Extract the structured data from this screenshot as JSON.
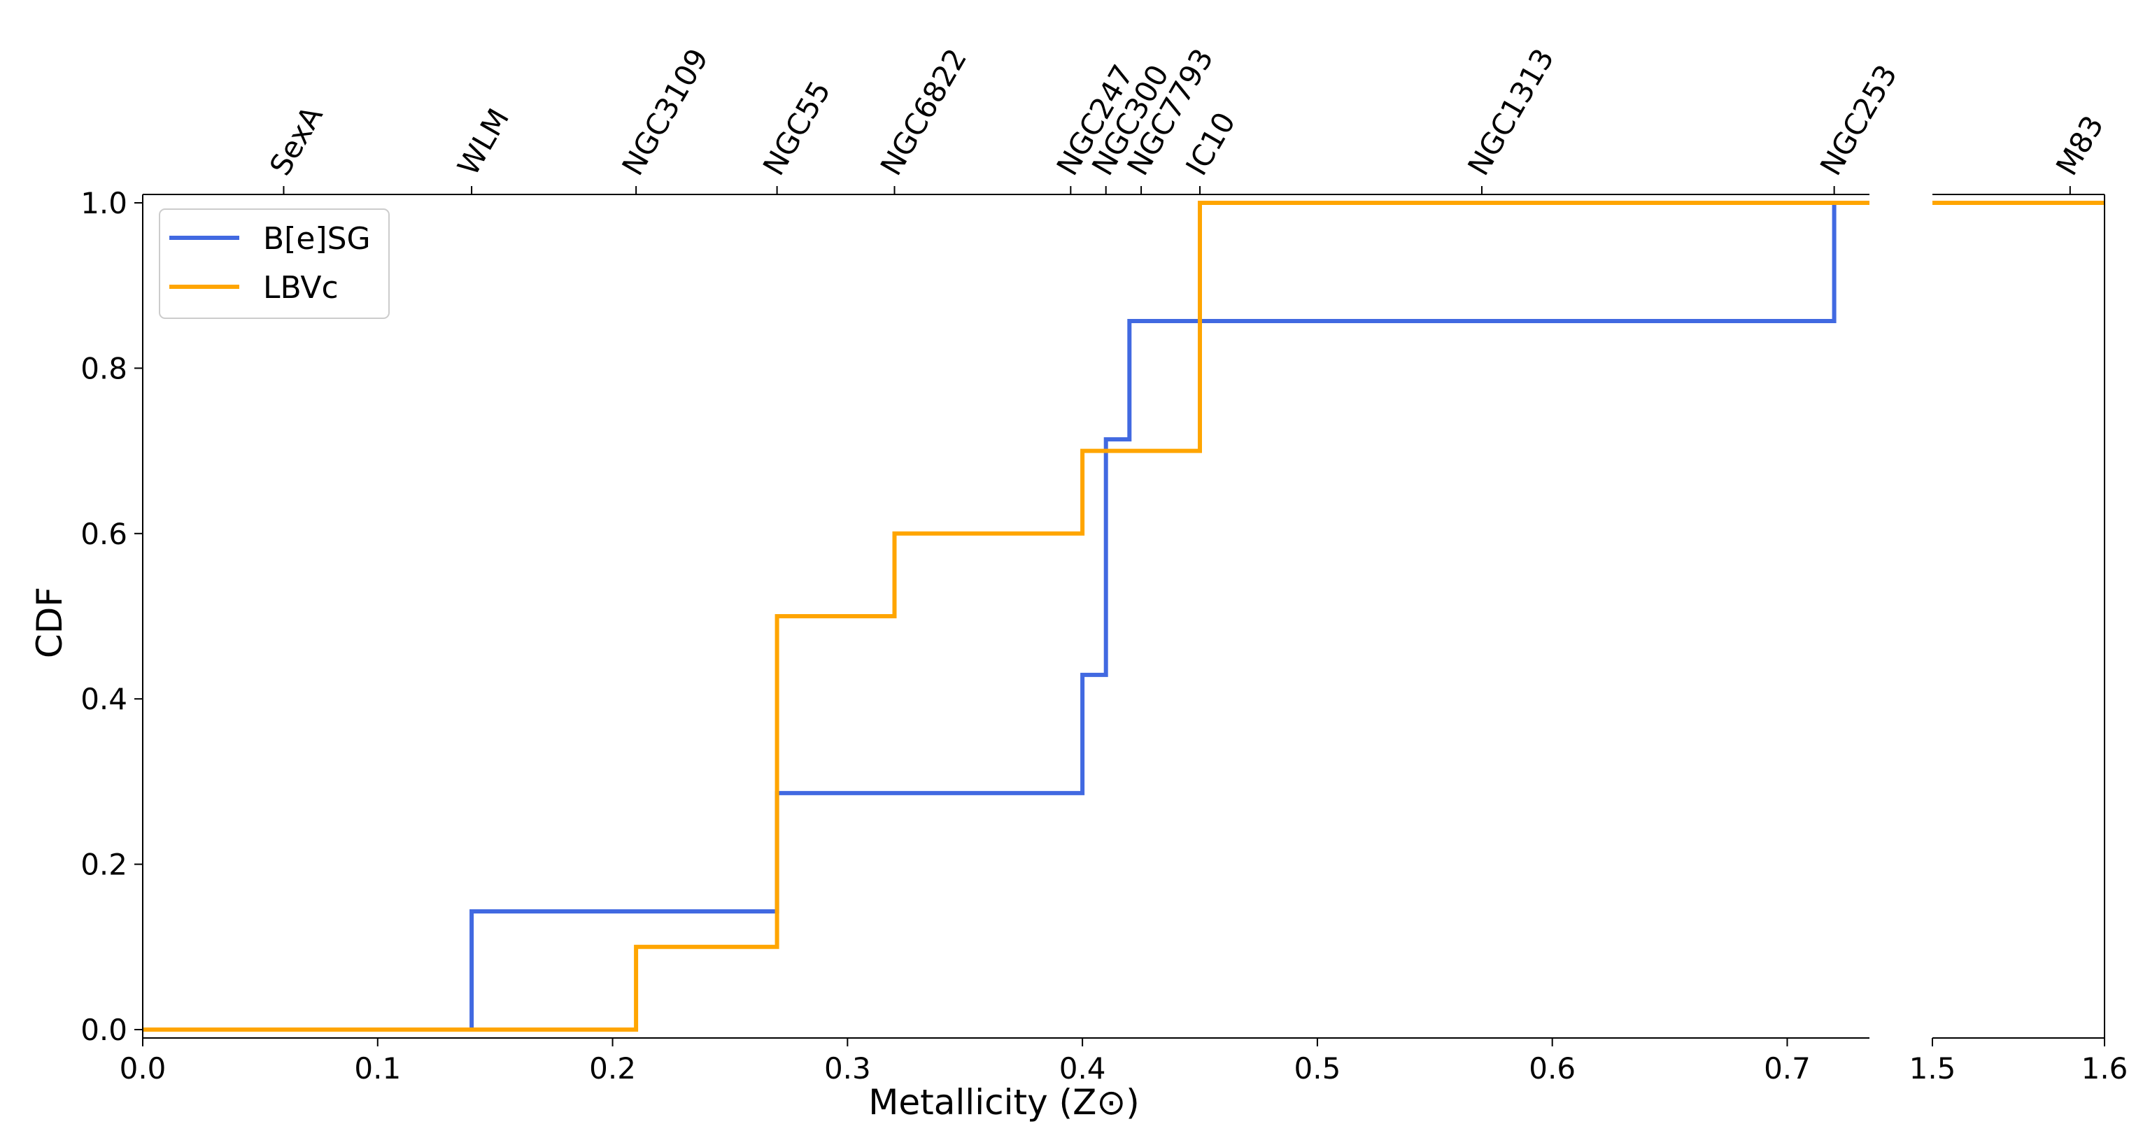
{
  "chart_data": {
    "type": "line",
    "step": true,
    "title": "",
    "xlabel": "Metallicity (Z⊙)",
    "ylabel": "CDF",
    "ylim": [
      0.0,
      1.0
    ],
    "yticks": [
      {
        "value": 0.0,
        "label": "0.0"
      },
      {
        "value": 0.2,
        "label": "0.2"
      },
      {
        "value": 0.4,
        "label": "0.4"
      },
      {
        "value": 0.6,
        "label": "0.6"
      },
      {
        "value": 0.8,
        "label": "0.8"
      },
      {
        "value": 1.0,
        "label": "1.0"
      }
    ],
    "broken_x_axis": {
      "left_xlim": [
        0.0,
        0.735
      ],
      "right_xlim": [
        1.5,
        1.6
      ],
      "left_ticks": [
        {
          "value": 0.0,
          "label": "0.0"
        },
        {
          "value": 0.1,
          "label": "0.1"
        },
        {
          "value": 0.2,
          "label": "0.2"
        },
        {
          "value": 0.3,
          "label": "0.3"
        },
        {
          "value": 0.4,
          "label": "0.4"
        },
        {
          "value": 0.5,
          "label": "0.5"
        },
        {
          "value": 0.6,
          "label": "0.6"
        },
        {
          "value": 0.7,
          "label": "0.7"
        }
      ],
      "right_ticks": [
        {
          "value": 1.5,
          "label": "1.5"
        },
        {
          "value": 1.6,
          "label": "1.6"
        }
      ]
    },
    "top_axis_galaxies": [
      {
        "name": "SexA",
        "z": 0.06
      },
      {
        "name": "WLM",
        "z": 0.14
      },
      {
        "name": "NGC3109",
        "z": 0.21
      },
      {
        "name": "NGC55",
        "z": 0.27
      },
      {
        "name": "NGC6822",
        "z": 0.32
      },
      {
        "name": "NGC247",
        "z": 0.395
      },
      {
        "name": "NGC300",
        "z": 0.41
      },
      {
        "name": "NGC7793",
        "z": 0.425
      },
      {
        "name": "IC10",
        "z": 0.45
      },
      {
        "name": "NGC1313",
        "z": 0.57
      },
      {
        "name": "NGC253",
        "z": 0.72
      },
      {
        "name": "M83",
        "z": 1.58
      }
    ],
    "series": [
      {
        "name": "B[e]SG",
        "color": "#4169e1",
        "x": [
          0.0,
          0.14,
          0.14,
          0.27,
          0.27,
          0.4,
          0.4,
          0.41,
          0.41,
          0.42,
          0.42,
          0.72,
          0.72,
          0.735
        ],
        "y": [
          0.0,
          0.0,
          0.143,
          0.143,
          0.286,
          0.286,
          0.429,
          0.429,
          0.714,
          0.714,
          0.857,
          0.857,
          1.0,
          1.0
        ]
      },
      {
        "name": "LBVc",
        "color": "#ffa500",
        "x": [
          0.0,
          0.21,
          0.21,
          0.27,
          0.27,
          0.32,
          0.32,
          0.4,
          0.4,
          0.45,
          0.45,
          0.735
        ],
        "y": [
          0.0,
          0.0,
          0.1,
          0.1,
          0.5,
          0.5,
          0.6,
          0.6,
          0.7,
          0.7,
          1.0,
          1.0
        ],
        "right_panel_y": 1.0
      }
    ],
    "legend": {
      "position": "top-left",
      "entries": [
        {
          "label": "B[e]SG",
          "color": "#4169e1"
        },
        {
          "label": "LBVc",
          "color": "#ffa500"
        }
      ]
    }
  }
}
